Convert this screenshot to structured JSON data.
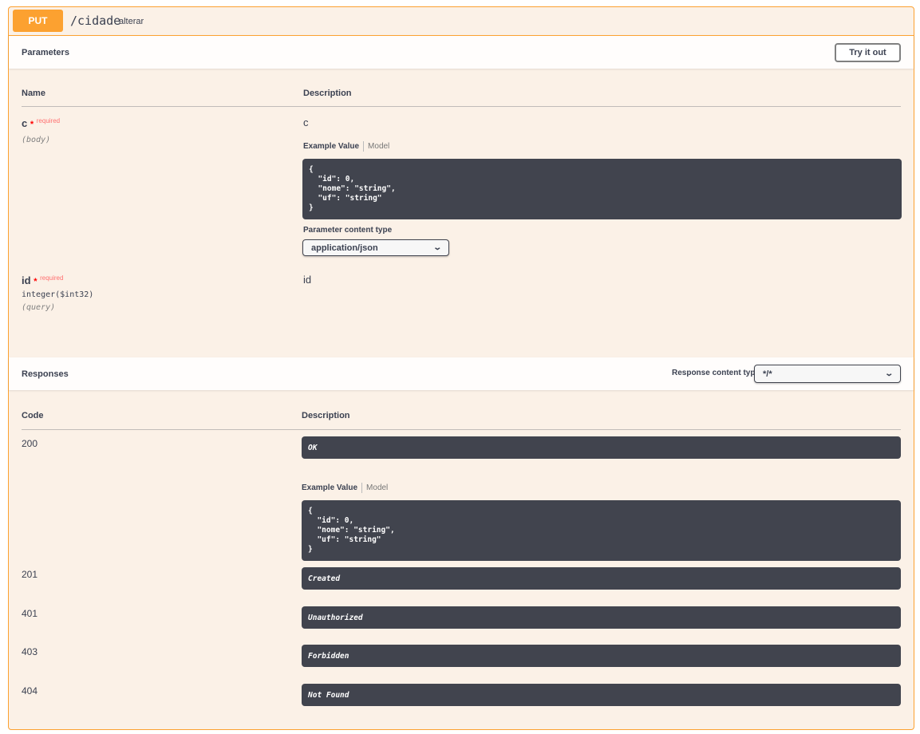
{
  "operation": {
    "method": "PUT",
    "path": "/cidade",
    "summary": "alterar",
    "method_color": "#fca130"
  },
  "parameters": {
    "title": "Parameters",
    "try_it_out": "Try it out",
    "col_name": "Name",
    "col_description": "Description",
    "items": [
      {
        "name": "c",
        "required_star": "*",
        "required_label": "required",
        "in": "(body)",
        "description": "c",
        "example_tab": "Example Value",
        "model_tab": "Model",
        "example": "{\n  \"id\": 0,\n  \"nome\": \"string\",\n  \"uf\": \"string\"\n}",
        "content_type_label": "Parameter content type",
        "content_type": "application/json"
      },
      {
        "name": "id",
        "required_star": "*",
        "required_label": "required",
        "type": "integer($int32)",
        "in": "(query)",
        "description": "id"
      }
    ]
  },
  "responses": {
    "title": "Responses",
    "content_type_label": "Response content type",
    "content_type": "*/*",
    "col_code": "Code",
    "col_description": "Description",
    "example_tab": "Example Value",
    "model_tab": "Model",
    "example": "{\n  \"id\": 0,\n  \"nome\": \"string\",\n  \"uf\": \"string\"\n}",
    "items": [
      {
        "code": "200",
        "description": "OK"
      },
      {
        "code": "201",
        "description": "Created"
      },
      {
        "code": "401",
        "description": "Unauthorized"
      },
      {
        "code": "403",
        "description": "Forbidden"
      },
      {
        "code": "404",
        "description": "Not Found"
      }
    ]
  }
}
